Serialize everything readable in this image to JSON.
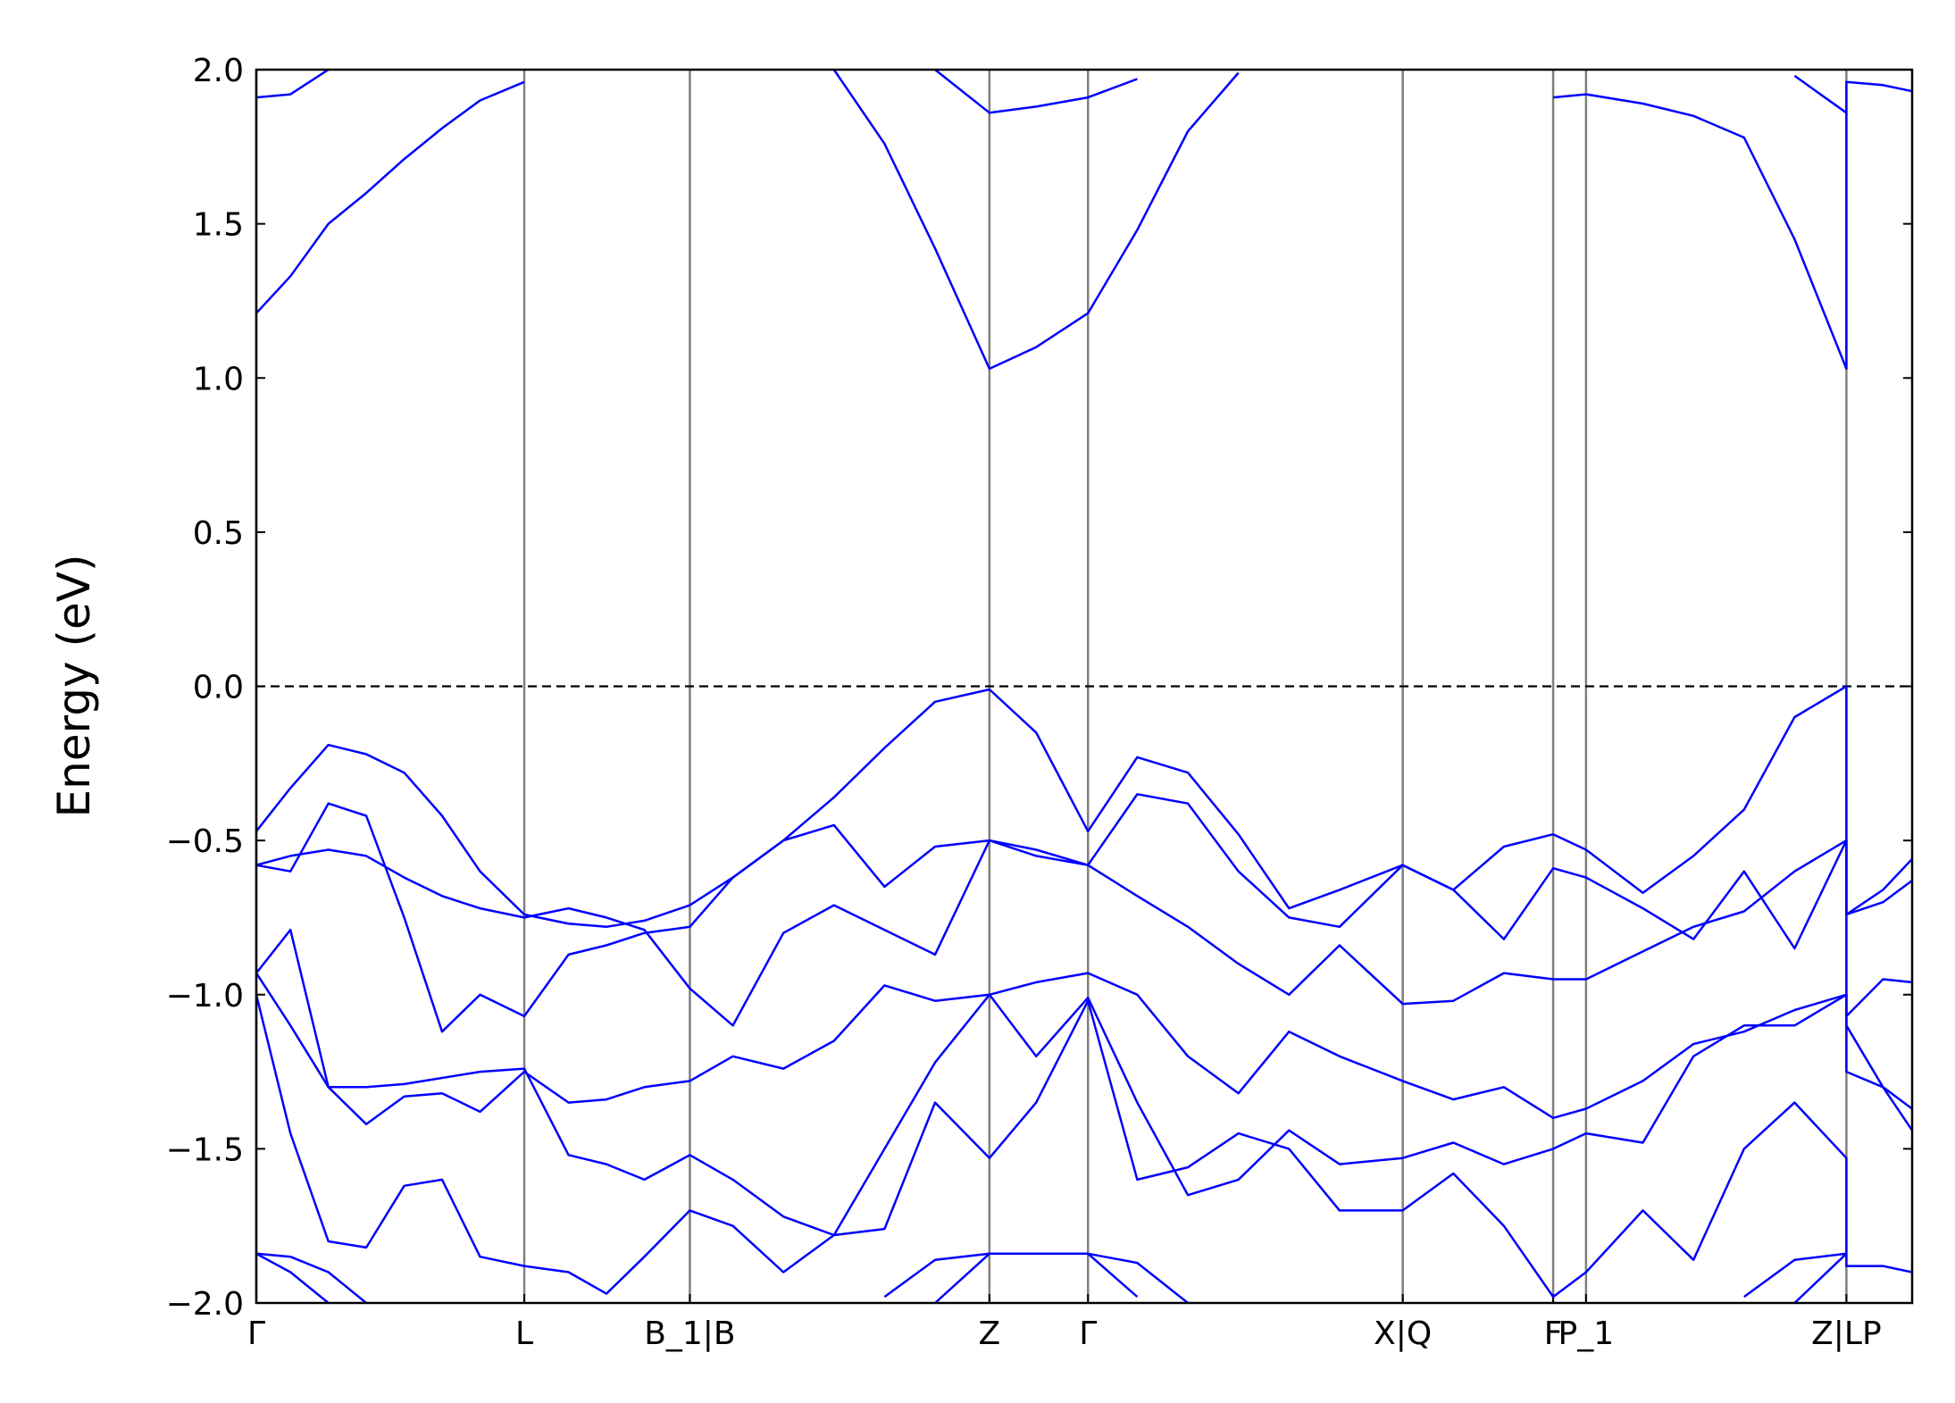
{
  "chart_data": {
    "type": "line",
    "ylabel": "Energy (eV)",
    "xlim": [
      0,
      6.55
    ],
    "ylim": [
      -2,
      2
    ],
    "xticks": [
      {
        "value": 0,
        "label": "Γ"
      },
      {
        "value": 1.06,
        "label": "L"
      },
      {
        "value": 1.715,
        "label": "B_1|B"
      },
      {
        "value": 2.9,
        "label": "Z"
      },
      {
        "value": 3.29,
        "label": "Γ"
      },
      {
        "value": 4.535,
        "label": "X|Q"
      },
      {
        "value": 5.13,
        "label": "F"
      },
      {
        "value": 5.26,
        "label": "P_1"
      },
      {
        "value": 6.29,
        "label": "Z|LP"
      }
    ],
    "yticks": [
      {
        "value": -2,
        "label": "−2.0"
      },
      {
        "value": -1.5,
        "label": "−1.5"
      },
      {
        "value": -1,
        "label": "−1.0"
      },
      {
        "value": -0.5,
        "label": "−0.5"
      },
      {
        "value": 0,
        "label": "0.0"
      },
      {
        "value": 0.5,
        "label": "0.5"
      },
      {
        "value": 1,
        "label": "1.0"
      },
      {
        "value": 1.5,
        "label": "1.5"
      },
      {
        "value": 2,
        "label": "2.0"
      }
    ],
    "hline": 0,
    "x": [
      0,
      0.135,
      0.285,
      0.435,
      0.585,
      0.735,
      0.885,
      1.06,
      1.235,
      1.385,
      1.535,
      1.715,
      1.885,
      2.085,
      2.285,
      2.485,
      2.685,
      2.9,
      3.085,
      3.29,
      3.485,
      3.685,
      3.885,
      4.085,
      4.285,
      4.535,
      4.735,
      4.935,
      5.13,
      5.26,
      5.485,
      5.685,
      5.885,
      6.085,
      6.29,
      6.29,
      6.435,
      6.55
    ],
    "series": [
      {
        "color": "#0000ff",
        "values": [
          1.21,
          1.33,
          1.5,
          1.6,
          1.71,
          1.81,
          1.9,
          1.96,
          null,
          null,
          null,
          null,
          null,
          null,
          2.0,
          1.76,
          1.42,
          1.03,
          1.1,
          1.21,
          1.48,
          1.8,
          1.99,
          null,
          null,
          null,
          null,
          null,
          1.91,
          1.92,
          1.89,
          1.85,
          1.78,
          1.45,
          1.03,
          1.96,
          1.95,
          1.93
        ]
      },
      {
        "color": "#0000ff",
        "values": [
          1.91,
          1.92,
          2.0,
          null,
          null,
          null,
          null,
          null,
          null,
          null,
          null,
          null,
          null,
          null,
          null,
          null,
          2.0,
          1.86,
          1.88,
          1.91,
          1.97,
          null,
          null,
          null,
          null,
          null,
          null,
          null,
          null,
          null,
          null,
          null,
          null,
          1.98,
          1.86,
          null,
          null,
          null
        ]
      },
      {
        "color": "#0000ff",
        "values": [
          -0.47,
          -0.33,
          -0.19,
          -0.22,
          -0.28,
          -0.42,
          -0.6,
          -0.74,
          -0.77,
          -0.78,
          -0.76,
          -0.71,
          -0.62,
          -0.5,
          -0.36,
          -0.2,
          -0.05,
          -0.01,
          -0.15,
          -0.47,
          -0.23,
          -0.28,
          -0.48,
          -0.72,
          -0.66,
          -0.58,
          -0.66,
          -0.52,
          -0.48,
          -0.53,
          -0.67,
          -0.55,
          -0.4,
          -0.1,
          0.0,
          -0.74,
          -0.66,
          -0.56
        ]
      },
      {
        "color": "#0000ff",
        "values": [
          -0.58,
          -0.6,
          -0.38,
          -0.42,
          -0.75,
          -1.12,
          -1.0,
          -1.07,
          -0.87,
          -0.84,
          -0.8,
          -0.78,
          -0.62,
          -0.5,
          -0.45,
          -0.65,
          -0.52,
          -0.5,
          -0.53,
          -0.58,
          -0.35,
          -0.38,
          -0.6,
          -0.75,
          -0.78,
          -0.58,
          -0.66,
          -0.82,
          -0.59,
          -0.62,
          -0.72,
          -0.82,
          -0.6,
          -0.85,
          -0.5,
          -0.74,
          -0.7,
          -0.63
        ]
      },
      {
        "color": "#0000ff",
        "values": [
          -0.58,
          -0.55,
          -0.53,
          -0.55,
          -0.62,
          -0.68,
          -0.72,
          -0.75,
          -0.72,
          -0.75,
          -0.79,
          -0.98,
          -1.1,
          -0.8,
          -0.71,
          -0.79,
          -0.87,
          -0.5,
          -0.55,
          -0.58,
          -0.68,
          -0.78,
          -0.9,
          -1.0,
          -0.84,
          -1.03,
          -1.02,
          -0.93,
          -0.95,
          -0.95,
          -0.86,
          -0.78,
          -0.73,
          -0.6,
          -0.5,
          -1.07,
          -0.95,
          -0.96
        ]
      },
      {
        "color": "#0000ff",
        "values": [
          -0.93,
          -0.79,
          -1.3,
          -1.42,
          -1.33,
          -1.32,
          -1.38,
          -1.25,
          -1.35,
          -1.34,
          -1.3,
          -1.28,
          -1.2,
          -1.24,
          -1.15,
          -0.97,
          -1.02,
          -1.0,
          -0.96,
          -0.93,
          -1.0,
          -1.2,
          -1.32,
          -1.12,
          -1.2,
          -1.28,
          -1.34,
          -1.3,
          -1.4,
          -1.37,
          -1.28,
          -1.16,
          -1.12,
          -1.05,
          -1.0,
          -1.25,
          -1.3,
          -1.37
        ]
      },
      {
        "color": "#0000ff",
        "values": [
          -0.93,
          -1.1,
          -1.3,
          -1.3,
          -1.29,
          -1.27,
          -1.25,
          -1.24,
          -1.52,
          -1.55,
          -1.6,
          -1.52,
          -1.6,
          -1.72,
          -1.78,
          -1.5,
          -1.22,
          -1.0,
          -1.2,
          -1.01,
          -1.35,
          -1.65,
          -1.6,
          -1.44,
          -1.55,
          -1.53,
          -1.48,
          -1.55,
          -1.5,
          -1.45,
          -1.48,
          -1.2,
          -1.1,
          -1.1,
          -1.0,
          -1.1,
          -1.3,
          -1.44
        ]
      },
      {
        "color": "#0000ff",
        "values": [
          -1.0,
          -1.45,
          -1.8,
          -1.82,
          -1.62,
          -1.6,
          -1.85,
          -1.88,
          -1.9,
          -1.97,
          -1.85,
          -1.7,
          -1.75,
          -1.9,
          -1.78,
          -1.76,
          -1.35,
          -1.53,
          -1.35,
          -1.02,
          -1.6,
          -1.56,
          -1.45,
          -1.5,
          -1.7,
          -1.7,
          -1.58,
          -1.75,
          -1.98,
          -1.9,
          -1.7,
          -1.86,
          -1.5,
          -1.35,
          -1.53,
          -1.88,
          -1.88,
          -1.9
        ]
      },
      {
        "color": "#0000ff",
        "values": [
          -1.84,
          -1.85,
          -1.9,
          -2.0,
          null,
          null,
          null,
          null,
          null,
          null,
          null,
          null,
          null,
          null,
          null,
          -1.98,
          -1.86,
          -1.84,
          -1.84,
          -1.84,
          -1.87,
          -2.0,
          null,
          null,
          null,
          null,
          null,
          null,
          null,
          null,
          null,
          null,
          -1.98,
          -1.86,
          -1.84,
          null,
          null,
          null
        ]
      },
      {
        "color": "#0000ff",
        "values": [
          -1.84,
          -1.9,
          -2.0,
          null,
          null,
          null,
          null,
          null,
          null,
          null,
          null,
          null,
          null,
          null,
          null,
          null,
          -2.0,
          -1.84,
          -1.84,
          -1.84,
          -1.98,
          null,
          null,
          null,
          null,
          null,
          null,
          null,
          null,
          null,
          null,
          null,
          null,
          -2.0,
          -1.84,
          null,
          null,
          null
        ]
      }
    ]
  }
}
